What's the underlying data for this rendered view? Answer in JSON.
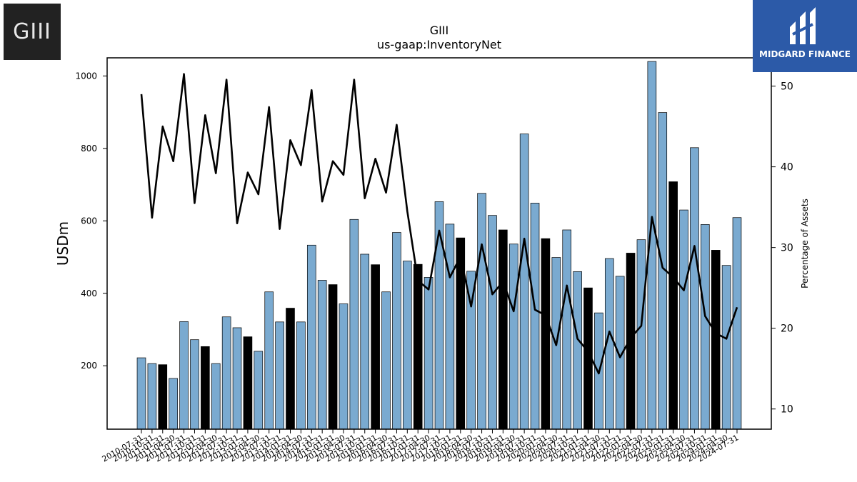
{
  "logo": {
    "text": "GIII"
  },
  "brand": {
    "name": "MIDGARD FINANCE",
    "color": "#2c5aa8"
  },
  "chart_data": {
    "type": "bar",
    "title": "GIII",
    "subtitle": "us-gaap:InventoryNet",
    "ylabel": "USDm",
    "y2label": "Percentage of Assets",
    "ylim": [
      25,
      1050
    ],
    "y2lim": [
      7.5,
      53.5
    ],
    "yticks": [
      200,
      400,
      600,
      800,
      1000
    ],
    "y2ticks": [
      10,
      20,
      30,
      40,
      50
    ],
    "bar_color": "#7aaad0",
    "highlight_color": "#000000",
    "line_color": "#000000",
    "categories": [
      "2010-07-31",
      "2010-10-31",
      "2011-01-31",
      "2011-04-30",
      "2011-07-31",
      "2011-10-31",
      "2012-01-31",
      "2012-04-30",
      "2012-07-31",
      "2012-10-31",
      "2013-01-31",
      "2013-04-30",
      "2013-07-31",
      "2013-10-31",
      "2014-01-31",
      "2014-04-30",
      "2014-07-31",
      "2014-10-31",
      "2015-01-31",
      "2015-04-30",
      "2015-07-31",
      "2015-10-31",
      "2016-01-31",
      "2016-04-30",
      "2016-07-31",
      "2016-10-31",
      "2017-01-31",
      "2017-04-30",
      "2017-07-31",
      "2017-10-31",
      "2018-01-31",
      "2018-04-30",
      "2018-07-31",
      "2018-10-31",
      "2019-01-31",
      "2019-04-30",
      "2019-07-31",
      "2019-10-31",
      "2020-01-31",
      "2020-04-30",
      "2020-07-31",
      "2020-10-31",
      "2021-01-31",
      "2021-04-30",
      "2021-07-31",
      "2021-10-31",
      "2022-01-31",
      "2022-04-30",
      "2022-07-31",
      "2022-10-31",
      "2023-01-31",
      "2023-04-30",
      "2023-07-31",
      "2023-10-31",
      "2024-01-31",
      "2024-04-30",
      "2024-07-31"
    ],
    "tick_labels": [
      "2010-07-31",
      "2010-10-31",
      "2011-01-31",
      "2011-04-30",
      "2011-07-31",
      "2011-10-31",
      "2012-01-31",
      "2012-04-30",
      "2012-07-31",
      "2012-10-31",
      "2013-01-31",
      "2013-04-30",
      "2013-07-31",
      "2013-10-31",
      "2014-01-31",
      "2014-04-30",
      "2014-07-31",
      "2014-10-31",
      "2015-01-31",
      "2015-04-30",
      "2015-07-31",
      "2015-10-31",
      "2016-01-31",
      "2016-04-30",
      "2016-07-31",
      "2016-10-31",
      "2017-01-31",
      "2017-04-30",
      "2017-07-31",
      "2017-10-31",
      "2018-01-31",
      "2018-04-30",
      "2018-07-31",
      "2018-10-31",
      "2019-01-31",
      "2019-04-30",
      "2019-07-31",
      "2019-10-31",
      "2020-01-31",
      "2020-04-30",
      "2020-07-31",
      "2020-10-31",
      "2021-01-31",
      "2021-04-30",
      "2021-07-31",
      "2021-10-31",
      "2022-01-31",
      "2022-04-30",
      "2022-07-31",
      "2022-10-31",
      "2023-01-31",
      "2023-04-30",
      "2023-07-31",
      "2023-10-31",
      "2024-01-31",
      "2024-04-30",
      "2024-07-31"
    ],
    "highlight": [
      false,
      false,
      true,
      false,
      false,
      false,
      true,
      false,
      false,
      false,
      true,
      false,
      false,
      false,
      true,
      false,
      false,
      false,
      true,
      false,
      false,
      false,
      true,
      false,
      false,
      false,
      true,
      false,
      false,
      false,
      true,
      false,
      false,
      false,
      true,
      false,
      false,
      false,
      true,
      false,
      false,
      false,
      true,
      false,
      false,
      false,
      true,
      false,
      false,
      false,
      true,
      false,
      false,
      false,
      true,
      false,
      false
    ],
    "series": [
      {
        "values": [
          222,
          206,
          203,
          165,
          322,
          272,
          253,
          206,
          335,
          305,
          280,
          240,
          404,
          321,
          359,
          321,
          533,
          436,
          424,
          371,
          604,
          508,
          479,
          404,
          568,
          489,
          480,
          444,
          653,
          591,
          553,
          461,
          676,
          615,
          575,
          536,
          840,
          649,
          551,
          499,
          575,
          460,
          415,
          346,
          496,
          447,
          511,
          548,
          1040,
          899,
          708,
          630,
          802,
          590,
          519,
          477,
          609
        ]
      },
      {
        "axis": "right",
        "values": [
          49,
          33.7,
          45,
          40.7,
          51.5,
          35.5,
          46.4,
          39.2,
          50.8,
          33,
          39.3,
          36.6,
          47.4,
          32.3,
          43.3,
          40.2,
          49.5,
          35.7,
          40.7,
          39,
          50.8,
          36.1,
          41,
          36.8,
          45.2,
          34.5,
          25.9,
          24.8,
          32.1,
          26.3,
          28.9,
          22.7,
          30.4,
          24.2,
          25.8,
          22.1,
          31.1,
          22.3,
          21.6,
          17.9,
          25.3,
          18.7,
          17.1,
          14.4,
          19.6,
          16.4,
          18.8,
          20.3,
          33.8,
          27.5,
          26.3,
          24.7,
          30.2,
          21.5,
          19.4,
          18.7,
          22.6
        ]
      }
    ]
  }
}
